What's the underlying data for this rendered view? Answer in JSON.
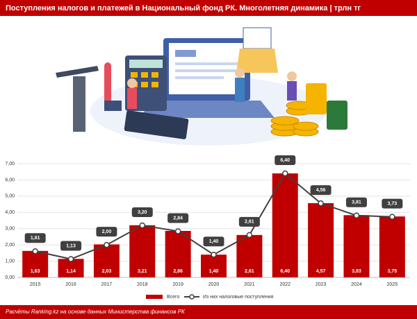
{
  "chart_data": {
    "type": "bar",
    "title": "Поступления налогов и платежей в Национальный фонд РК. Многолетняя динамика | трлн тг",
    "footer": "Расчёты Ranking.kz на основе данных Министерства финансов РК",
    "categories": [
      "2015",
      "2016",
      "2017",
      "2018",
      "2019",
      "2020",
      "2021",
      "2022",
      "2023",
      "2024",
      "2025"
    ],
    "series": [
      {
        "name": "Всего",
        "type": "bar",
        "color": "#c00000",
        "values": [
          1.63,
          1.14,
          2.03,
          3.21,
          2.86,
          1.4,
          2.61,
          6.4,
          4.57,
          3.83,
          3.75
        ],
        "value_labels": [
          "1,63",
          "1,14",
          "2,03",
          "3,21",
          "2,86",
          "1,40",
          "2,61",
          "6,40",
          "4,57",
          "3,83",
          "3,75"
        ]
      },
      {
        "name": "Из них налоговые поступления",
        "type": "line",
        "color": "#404040",
        "values": [
          1.61,
          1.13,
          2.0,
          3.2,
          2.84,
          1.4,
          2.61,
          6.4,
          4.56,
          3.81,
          3.73
        ],
        "value_labels": [
          "1,61",
          "1,13",
          "2,00",
          "3,20",
          "2,84",
          "1,40",
          "2,61",
          "6,40",
          "4,56",
          "3,81",
          "3,73"
        ]
      }
    ],
    "ylim": [
      0,
      7
    ],
    "yticks": [
      {
        "value": 0,
        "label": "0,00"
      },
      {
        "value": 1,
        "label": "1,00"
      },
      {
        "value": 2,
        "label": "2,00"
      },
      {
        "value": 3,
        "label": "3,00"
      },
      {
        "value": 4,
        "label": "4,00"
      },
      {
        "value": 5,
        "label": "5,00"
      },
      {
        "value": 6,
        "label": "6,00"
      },
      {
        "value": 7,
        "label": "7,00"
      }
    ],
    "grid": true
  }
}
